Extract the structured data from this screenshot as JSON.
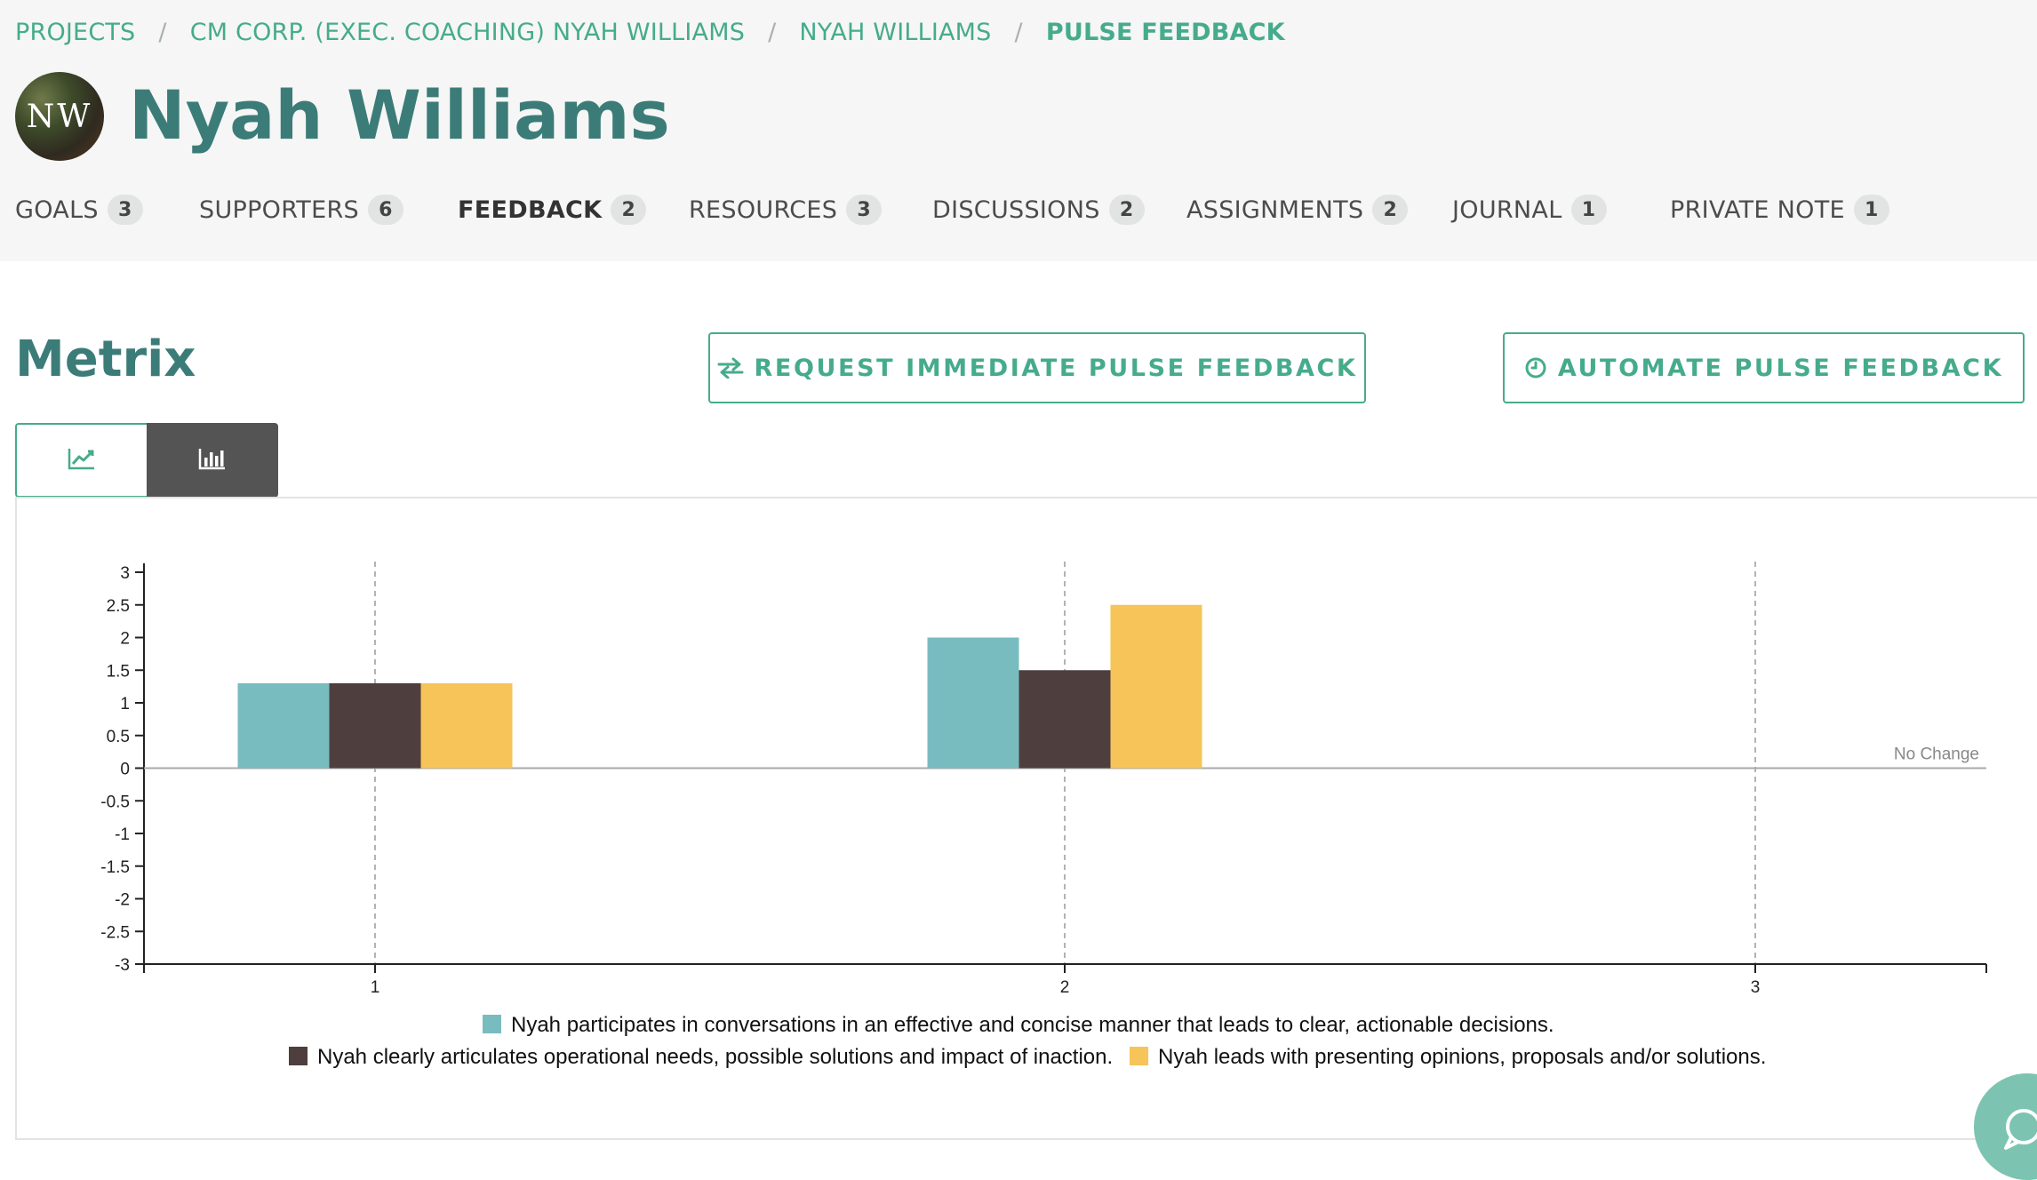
{
  "breadcrumb": {
    "items": [
      "PROJECTS",
      "CM CORP. (EXEC. COACHING) NYAH WILLIAMS",
      "NYAH WILLIAMS"
    ],
    "current": "PULSE FEEDBACK",
    "separator": "/"
  },
  "profile": {
    "initials": "NW",
    "name": "Nyah Williams"
  },
  "tabs": [
    {
      "label": "GOALS",
      "count": "3"
    },
    {
      "label": "SUPPORTERS",
      "count": "6"
    },
    {
      "label": "FEEDBACK",
      "count": "2",
      "active": true
    },
    {
      "label": "RESOURCES",
      "count": "3"
    },
    {
      "label": "DISCUSSIONS",
      "count": "2"
    },
    {
      "label": "ASSIGNMENTS",
      "count": "2"
    },
    {
      "label": "JOURNAL",
      "count": "1"
    },
    {
      "label": "PRIVATE NOTE",
      "count": "1"
    }
  ],
  "section": {
    "title": "Metrix",
    "request_button": "REQUEST IMMEDIATE PULSE FEEDBACK",
    "automate_button": "AUTOMATE PULSE FEEDBACK"
  },
  "view_toggle": {
    "options": [
      "line-chart-icon",
      "bar-chart-icon"
    ],
    "selected": "bar-chart-icon"
  },
  "colors": {
    "accent": "#46ab8c",
    "title": "#3c7c78",
    "series_1": "#79bcc0",
    "series_2": "#4f3e3e",
    "series_3": "#f6c458"
  },
  "chart_data": {
    "type": "bar",
    "categories": [
      "1",
      "2",
      "3"
    ],
    "ylim": [
      -3,
      3
    ],
    "yticks": [
      "3",
      "2.5",
      "2",
      "1.5",
      "1",
      "0.5",
      "0",
      "-0.5",
      "-1",
      "-1.5",
      "-2",
      "-2.5",
      "-3"
    ],
    "baseline_label": "No Change",
    "grid": "vertical dashed lines at categories",
    "legend_position": "bottom",
    "series": [
      {
        "name": "Nyah participates in conversations in an effective and concise manner that leads to clear, actionable decisions.",
        "values": [
          1.3,
          2.0,
          0
        ],
        "color": "#79bcc0"
      },
      {
        "name": "Nyah clearly articulates operational needs, possible solutions and impact of inaction.",
        "values": [
          1.3,
          1.5,
          0
        ],
        "color": "#4f3e3e"
      },
      {
        "name": "Nyah leads with presenting opinions, proposals and/or solutions.",
        "values": [
          1.3,
          2.5,
          0
        ],
        "color": "#f6c458"
      }
    ]
  }
}
